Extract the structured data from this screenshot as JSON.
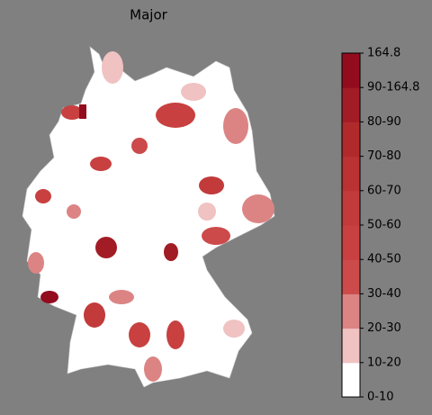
{
  "title": "Major",
  "colorbar": {
    "labels": [
      "0-10",
      "10-20",
      "20-30",
      "30-40",
      "40-50",
      "50-60",
      "60-70",
      "70-80",
      "80-90",
      "90-164.8",
      "164.8"
    ],
    "colors": [
      "#ffffff",
      "#f0c2c2",
      "#dc8484",
      "#cc4a4a",
      "#c84040",
      "#c23a3a",
      "#ba3232",
      "#b02a2c",
      "#a21c26",
      "#920c1e"
    ]
  }
}
